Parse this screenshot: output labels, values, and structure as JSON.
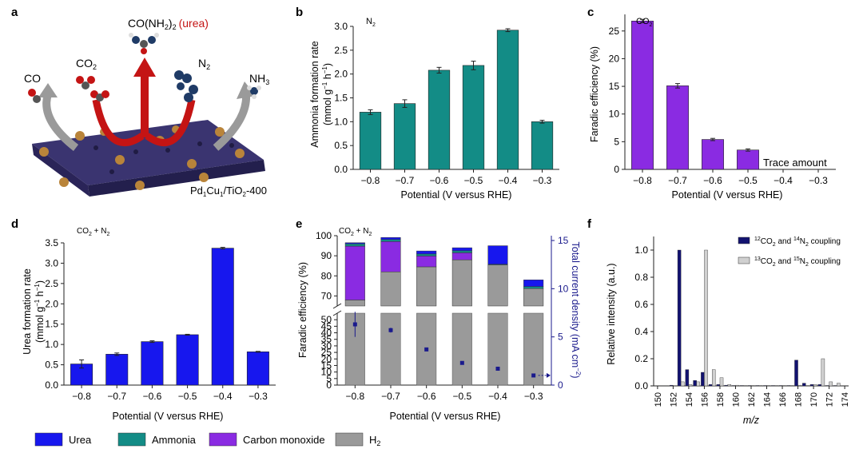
{
  "panel_letters": [
    "a",
    "b",
    "c",
    "d",
    "e",
    "f"
  ],
  "colors": {
    "urea": "#1717ee",
    "ammonia": "#138c86",
    "co": "#8a2be2",
    "h2": "#9a9a9a",
    "current": "#1a1a8c",
    "f_dark": "#121270",
    "f_light": "#d0d0d0",
    "catalyst": "#3a3470",
    "red_arrow": "#c41414"
  },
  "panel_a": {
    "labels": {
      "urea_formula": "CO(NH",
      "urea_sub": "2",
      "urea_close": ")",
      "urea_sub2": "2",
      "urea_word": "(urea)",
      "co": "CO",
      "co2": "CO",
      "co2_sub": "2",
      "n2": "N",
      "n2_sub": "2",
      "nh3": "NH",
      "nh3_sub": "3",
      "catalyst": "Pd",
      "catalyst_sub1": "1",
      "catalyst_mid": "Cu",
      "catalyst_sub2": "1",
      "catalyst_end": "/TiO",
      "catalyst_sub3": "2",
      "catalyst_tail": "-400"
    }
  },
  "legend": {
    "items": [
      {
        "label": "Urea",
        "color_key": "urea"
      },
      {
        "label": "Ammonia",
        "color_key": "ammonia"
      },
      {
        "label": "Carbon monoxide",
        "color_key": "co"
      },
      {
        "label": "H",
        "sub": "2",
        "color_key": "h2"
      }
    ]
  },
  "chart_data": [
    {
      "panel": "b",
      "type": "bar",
      "annotation": "N",
      "annotation_sub": "2",
      "categories": [
        "−0.8",
        "−0.7",
        "−0.6",
        "−0.5",
        "−0.4",
        "−0.3"
      ],
      "values": [
        1.2,
        1.38,
        2.08,
        2.18,
        2.92,
        1.0
      ],
      "errors": [
        0.05,
        0.08,
        0.06,
        0.09,
        0.03,
        0.03
      ],
      "xlabel": "Potential (V versus RHE)",
      "ylabel_line1": "Ammonia formation rate",
      "ylabel_line2": "(mmol g",
      "ylabel_sup1": "−1",
      "ylabel_mid": " h",
      "ylabel_sup2": "−1",
      "ylabel_end": ")",
      "ylim": [
        0,
        3.0
      ],
      "yticks": [
        "0.0",
        "0.5",
        "1.0",
        "1.5",
        "2.0",
        "2.5",
        "3.0"
      ]
    },
    {
      "panel": "c",
      "type": "bar",
      "annotation": "CO",
      "annotation_sub": "2",
      "categories": [
        "−0.8",
        "−0.7",
        "−0.6",
        "−0.5",
        "−0.4",
        "−0.3"
      ],
      "values": [
        26.8,
        15.1,
        5.4,
        3.5,
        null,
        null
      ],
      "errors": [
        0.3,
        0.4,
        0.2,
        0.2,
        null,
        null
      ],
      "trace_text": "Trace amount",
      "xlabel": "Potential (V versus RHE)",
      "ylabel": "Faradic efficiency (%)",
      "ylim": [
        0,
        28
      ],
      "yticks": [
        "0",
        "5",
        "10",
        "15",
        "20",
        "25"
      ]
    },
    {
      "panel": "d",
      "type": "bar",
      "annotation": "CO",
      "annotation_sub": "2",
      "annotation_end": " + N",
      "annotation_sub2": "2",
      "categories": [
        "−0.8",
        "−0.7",
        "−0.6",
        "−0.5",
        "−0.4",
        "−0.3"
      ],
      "values": [
        0.52,
        0.76,
        1.07,
        1.24,
        3.37,
        0.82
      ],
      "errors": [
        0.1,
        0.03,
        0.02,
        0.01,
        0.02,
        0.01
      ],
      "xlabel": "Potential (V versus RHE)",
      "ylabel_line1": "Urea formation rate",
      "ylabel_line2": "(mmol g",
      "ylabel_sup1": "−1",
      "ylabel_mid": " h",
      "ylabel_sup2": "−1",
      "ylabel_end": ")",
      "ylim": [
        0,
        3.5
      ],
      "yticks": [
        "0.0",
        "0.5",
        "1.0",
        "1.5",
        "2.0",
        "2.5",
        "3.0",
        "3.5"
      ]
    },
    {
      "panel": "e",
      "type": "bar",
      "stacked": true,
      "annotation": "CO",
      "annotation_sub": "2",
      "annotation_end": " + N",
      "annotation_sub2": "2",
      "categories": [
        "−0.8",
        "−0.7",
        "−0.6",
        "−0.5",
        "−0.4",
        "−0.3"
      ],
      "series": [
        {
          "name": "H2",
          "color_key": "h2",
          "values": [
            68.0,
            82.0,
            84.5,
            88.0,
            85.5,
            73.7
          ]
        },
        {
          "name": "Carbon monoxide",
          "color_key": "co",
          "values": [
            26.8,
            15.1,
            5.4,
            3.5,
            0,
            0
          ]
        },
        {
          "name": "Ammonia",
          "color_key": "ammonia",
          "values": [
            1.2,
            1.0,
            1.0,
            1.0,
            0.3,
            1.0
          ]
        },
        {
          "name": "Urea",
          "color_key": "urea",
          "values": [
            0.5,
            1.0,
            1.5,
            1.5,
            9.2,
            3.3
          ]
        }
      ],
      "current_density": [
        6.3,
        5.7,
        3.7,
        2.3,
        1.7,
        1.0
      ],
      "current_errors": [
        1.3,
        0.25,
        0.1,
        0.1,
        0.05,
        0.05
      ],
      "xlabel": "Potential (V versus RHE)",
      "ylabel": "Faradic efficiency (%)",
      "y2label": "Total current density (mA cm",
      "y2label_sup": "−2",
      "y2label_end": ")",
      "ylim_upper": [
        65,
        100
      ],
      "ylim_lower": [
        0,
        55
      ],
      "yticks_upper": [
        "70",
        "80",
        "90",
        "100"
      ],
      "yticks_lower": [
        "0",
        "5",
        "10",
        "15",
        "20",
        "25",
        "30",
        "35",
        "40",
        "45",
        "50"
      ],
      "y2lim": [
        0,
        15.5
      ],
      "y2ticks": [
        "0",
        "5",
        "10",
        "15"
      ]
    },
    {
      "panel": "f",
      "type": "bar",
      "legend_entries": [
        {
          "pre_sup": "12",
          "text": "CO",
          "sub": "2",
          "mid": " and ",
          "sup2": "14",
          "text2": "N",
          "sub2": "2",
          "tail": " coupling",
          "color_key": "f_dark"
        },
        {
          "pre_sup": "13",
          "text": "CO",
          "sub": "2",
          "mid": " and ",
          "sup2": "15",
          "text2": "N",
          "sub2": "2",
          "tail": " coupling",
          "color_key": "f_light"
        }
      ],
      "series": [
        {
          "name": "12CO2 and 14N2 coupling",
          "color_key": "f_dark",
          "x": [
            150,
            151,
            152,
            153,
            154,
            155,
            156,
            157,
            158,
            159,
            160,
            161,
            162,
            163,
            164,
            165,
            166,
            167,
            168,
            169,
            170,
            171,
            172,
            173
          ],
          "values": [
            0,
            0,
            0.005,
            1.0,
            0.12,
            0.04,
            0.1,
            0.01,
            0.01,
            0.005,
            0.003,
            0.003,
            0.003,
            0.003,
            0.003,
            0.003,
            0.003,
            0.003,
            0.19,
            0.02,
            0.01,
            0.01,
            0.003,
            0.003
          ]
        },
        {
          "name": "13CO2 and 15N2 coupling",
          "color_key": "f_light",
          "x": [
            150,
            151,
            152,
            153,
            154,
            155,
            156,
            157,
            158,
            159,
            160,
            161,
            162,
            163,
            164,
            165,
            166,
            167,
            168,
            169,
            170,
            171,
            172,
            173
          ],
          "values": [
            0,
            0,
            0,
            0.03,
            0.01,
            0.03,
            1.0,
            0.12,
            0.06,
            0.01,
            0.005,
            0.003,
            0.003,
            0.003,
            0.003,
            0.003,
            0.003,
            0.003,
            0.005,
            0.003,
            0.01,
            0.2,
            0.03,
            0.02
          ]
        }
      ],
      "xlabel": "m/z",
      "ylabel": "Relative intensity (a.u.)",
      "xticks": [
        "150",
        "152",
        "154",
        "156",
        "158",
        "160",
        "162",
        "164",
        "166",
        "168",
        "170",
        "172",
        "174"
      ],
      "xlim": [
        149.5,
        174.5
      ],
      "ylim": [
        0,
        1.1
      ],
      "yticks": [
        "0.0",
        "0.2",
        "0.4",
        "0.6",
        "0.8",
        "1.0"
      ]
    }
  ]
}
